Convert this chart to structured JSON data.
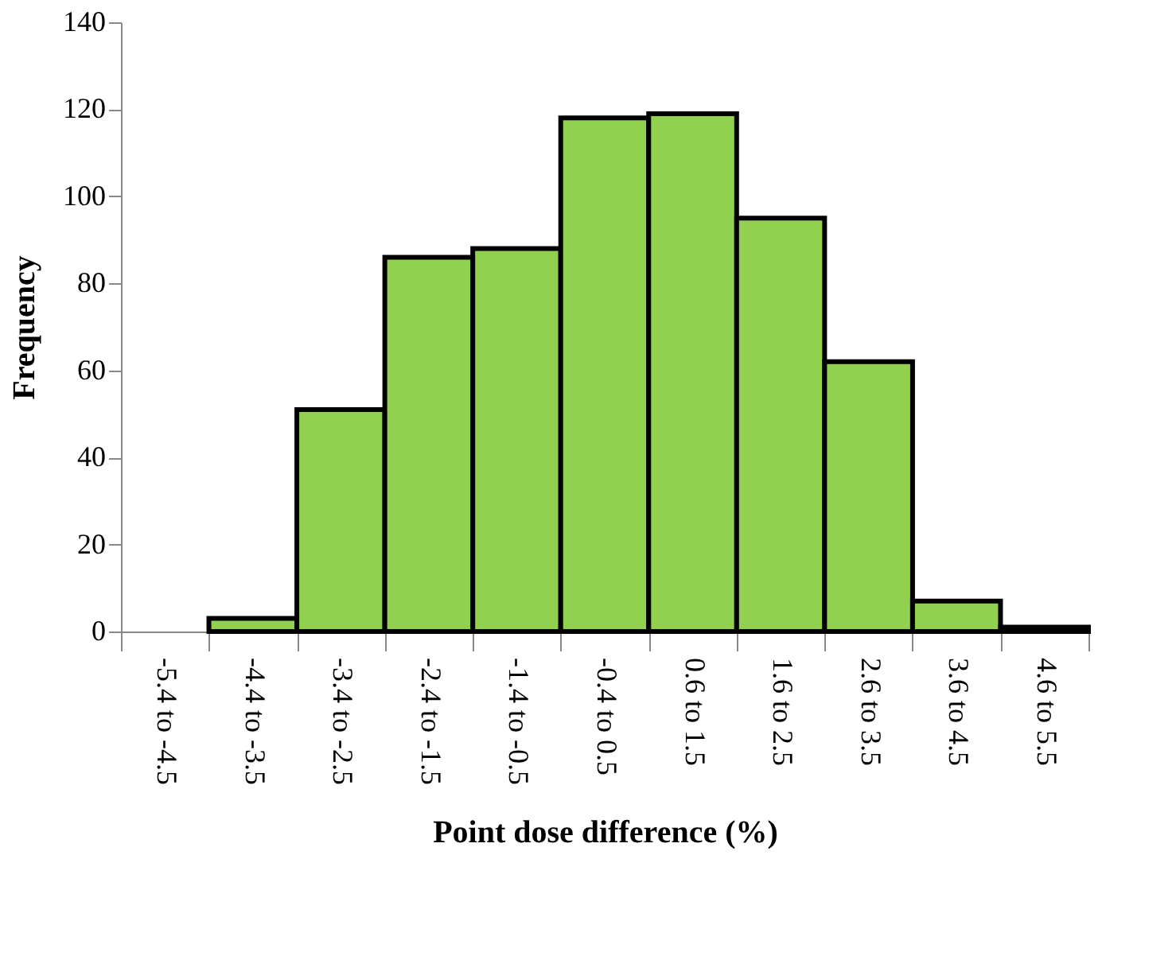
{
  "chart_data": {
    "type": "bar",
    "xlabel": "Point dose difference (%)",
    "ylabel": "Frequency",
    "categories": [
      "-5.4 to -4.5",
      "-4.4 to -3.5",
      "-3.4 to -2.5",
      "-2.4 to -1.5",
      "-1.4 to -0.5",
      "-0.4 to 0.5",
      "0.6 to 1.5",
      "1.6 to 2.5",
      "2.6 to 3.5",
      "3.6 to 4.5",
      "4.6 to 5.5"
    ],
    "values": [
      0,
      3,
      51,
      86,
      88,
      118,
      119,
      95,
      62,
      7,
      1
    ],
    "color": "#92d050",
    "ylim": [
      0,
      140
    ],
    "yticks": [
      0,
      20,
      40,
      60,
      80,
      100,
      120,
      140
    ],
    "grid": false
  }
}
